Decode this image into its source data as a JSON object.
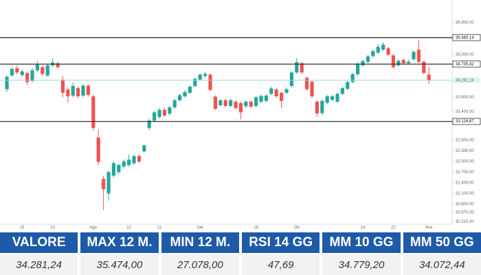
{
  "chart_data": {
    "type": "candlestick",
    "categories": [
      null,
      null,
      null,
      "15",
      null,
      null,
      null,
      null,
      null,
      "23",
      null,
      null,
      null,
      null,
      null,
      null,
      null,
      "Ago",
      null,
      null,
      null,
      null,
      null,
      null,
      "12",
      null,
      null,
      null,
      null,
      null,
      "21",
      null,
      null,
      null,
      null,
      null,
      null,
      null,
      "Set",
      null,
      null,
      null,
      null,
      null,
      null,
      null,
      null,
      null,
      null,
      "16",
      null,
      null,
      null,
      null,
      null,
      null,
      null,
      "Ott",
      null,
      null,
      null,
      null,
      null,
      null,
      null,
      null,
      null,
      null,
      null,
      null,
      "14",
      null,
      null,
      null,
      null,
      null,
      "22",
      null,
      null,
      null,
      null,
      null,
      null,
      "Nov"
    ],
    "open": [
      34030,
      34420,
      34620,
      34430,
      34480,
      34260,
      34560,
      34650,
      34410,
      34700,
      34760,
      34300,
      34020,
      33850,
      34060,
      33850,
      34130,
      33830,
      32670,
      31510,
      31100,
      31600,
      31700,
      31860,
      31900,
      31950,
      32150,
      32280,
      32940,
      33150,
      33250,
      33450,
      33340,
      33520,
      33720,
      33830,
      33930,
      34120,
      34300,
      34400,
      34440,
      33820,
      33580,
      33720,
      33560,
      33680,
      33640,
      33550,
      33680,
      33560,
      33680,
      33700,
      33900,
      34020,
      33930,
      33930,
      34120,
      34500,
      34760,
      34350,
      34240,
      33680,
      33360,
      33650,
      33730,
      33680,
      33900,
      34040,
      34230,
      34450,
      34700,
      34800,
      34960,
      35060,
      35140,
      35180,
      34980,
      34700,
      34850,
      34760,
      34870,
      35140,
      34800,
      34440
    ],
    "high": [
      34420,
      34650,
      34700,
      34580,
      34520,
      34620,
      34820,
      34700,
      34750,
      34890,
      34800,
      34400,
      34080,
      34210,
      34100,
      34180,
      34170,
      33880,
      32900,
      31600,
      31750,
      32000,
      31950,
      32050,
      32200,
      32200,
      32200,
      32480,
      33200,
      33420,
      33500,
      33500,
      33560,
      33760,
      33900,
      34000,
      34150,
      34360,
      34480,
      34520,
      34480,
      33860,
      33760,
      33760,
      33760,
      33720,
      33680,
      33720,
      33720,
      33840,
      33880,
      33900,
      34100,
      34060,
      33960,
      34080,
      34540,
      34900,
      34800,
      34380,
      34280,
      33720,
      33740,
      33870,
      33880,
      33940,
      34100,
      34270,
      34490,
      34790,
      34860,
      34990,
      35140,
      35300,
      35350,
      35220,
      35020,
      34870,
      34890,
      34850,
      35120,
      35400,
      34840,
      34650
    ],
    "low": [
      33950,
      34380,
      34450,
      34380,
      34150,
      34220,
      34520,
      34400,
      34380,
      34650,
      34600,
      33800,
      33650,
      33800,
      33780,
      33800,
      33820,
      32870,
      31900,
      30640,
      30900,
      31550,
      31650,
      31800,
      31850,
      31900,
      31950,
      32250,
      32880,
      33100,
      33200,
      33250,
      33300,
      33480,
      33680,
      33800,
      33900,
      34080,
      34260,
      34360,
      33980,
      33440,
      33540,
      33520,
      33520,
      33460,
      33180,
      33500,
      33500,
      33520,
      33640,
      33660,
      33860,
      33800,
      33500,
      33900,
      34080,
      34460,
      34460,
      33990,
      33780,
      33250,
      33300,
      33600,
      33690,
      33640,
      33860,
      34000,
      34190,
      34410,
      34660,
      34760,
      34920,
      35020,
      35100,
      34960,
      34600,
      34660,
      34720,
      34720,
      34830,
      34760,
      34450,
      34180
    ],
    "close": [
      34380,
      34600,
      34500,
      34530,
      34230,
      34560,
      34720,
      34460,
      34700,
      34780,
      34650,
      33930,
      33830,
      34120,
      33830,
      34130,
      33870,
      32940,
      31990,
      31220,
      31700,
      31950,
      31900,
      32000,
      32050,
      32150,
      32000,
      32450,
      33150,
      33380,
      33450,
      33290,
      33520,
      33720,
      33860,
      33950,
      34100,
      34320,
      34440,
      34460,
      34010,
      33480,
      33720,
      33560,
      33720,
      33500,
      33380,
      33680,
      33540,
      33800,
      33840,
      33850,
      34050,
      33830,
      33700,
      34030,
      34500,
      34790,
      34500,
      34030,
      33830,
      33350,
      33700,
      33830,
      33830,
      33900,
      34060,
      34230,
      34450,
      34750,
      34820,
      34950,
      35100,
      35220,
      35280,
      35000,
      34650,
      34830,
      34760,
      34800,
      35080,
      34800,
      34490,
      34281.24
    ],
    "up_color": "#26a69a",
    "down_color": "#ef5350",
    "ylim": [
      30200,
      36150
    ],
    "yticks": [
      {
        "value": 35900,
        "label": "35.900,00"
      },
      {
        "value": 35000,
        "label": "35.000,00"
      },
      {
        "value": 33800,
        "label": "33.800,00"
      },
      {
        "value": 33400,
        "label": "33.400,00"
      },
      {
        "value": 32600,
        "label": "32.600,00"
      },
      {
        "value": 32300,
        "label": "32.300,00"
      },
      {
        "value": 32000,
        "label": "32.000,00"
      },
      {
        "value": 31700,
        "label": "31.700,00"
      },
      {
        "value": 31400,
        "label": "31.400,00"
      },
      {
        "value": 31100,
        "label": "31.100,00"
      },
      {
        "value": 30800,
        "label": "30.800,00"
      },
      {
        "value": 30570,
        "label": "30.570,00"
      },
      {
        "value": 30310,
        "label": "30.310,00"
      }
    ],
    "levels": [
      {
        "value": 35480.14,
        "label": "35.480,14"
      },
      {
        "value": 34735.42,
        "label": "34.735,42"
      },
      {
        "value": 33124.67,
        "label": "33.124,67"
      }
    ],
    "last_price": {
      "value": 34281.24,
      "label": "34.281,24"
    }
  },
  "table": {
    "headers": [
      "VALORE",
      "MAX 12 M.",
      "MIN 12 M.",
      "RSI 14 GG",
      "MM 10 GG",
      "MM 50 GG"
    ],
    "values": [
      "34.281,24",
      "35.474,00",
      "27.078,00",
      "47,69",
      "34.779,20",
      "34.072,44"
    ]
  }
}
